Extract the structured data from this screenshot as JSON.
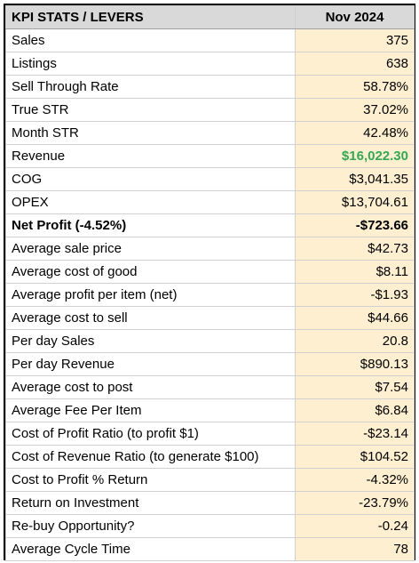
{
  "header": {
    "metric_label": "KPI STATS / LEVERS",
    "month_label": "Nov 2024"
  },
  "colors": {
    "header_bg": "#d9d9d9",
    "value_bg": "#fdefd0",
    "revenue_green": "#34a853"
  },
  "rows": [
    {
      "label": "Sales",
      "value": "375"
    },
    {
      "label": "Listings",
      "value": "638"
    },
    {
      "label": "Sell Through Rate",
      "value": "58.78%"
    },
    {
      "label": "True STR",
      "value": "37.02%"
    },
    {
      "label": "Month STR",
      "value": "42.48%"
    },
    {
      "label": "Revenue",
      "value": "$16,022.30"
    },
    {
      "label": "COG",
      "value": "$3,041.35"
    },
    {
      "label": "OPEX",
      "value": "$13,704.61"
    },
    {
      "label": "Net Profit (-4.52%)",
      "value": "-$723.66"
    },
    {
      "label": "Average sale price",
      "value": "$42.73"
    },
    {
      "label": "Average cost of good",
      "value": "$8.11"
    },
    {
      "label": "Average profit per item (net)",
      "value": "-$1.93"
    },
    {
      "label": "Average cost to sell",
      "value": "$44.66"
    },
    {
      "label": "Per day Sales",
      "value": "20.8"
    },
    {
      "label": "Per day Revenue",
      "value": "$890.13"
    },
    {
      "label": "Average cost to post",
      "value": "$7.54"
    },
    {
      "label": "Average Fee Per Item",
      "value": "$6.84"
    },
    {
      "label": "Cost of Profit Ratio (to profit $1)",
      "value": "-$23.14"
    },
    {
      "label": "Cost of Revenue Ratio (to generate $100)",
      "value": "$104.52"
    },
    {
      "label": "Cost to Profit % Return",
      "value": "-4.32%"
    },
    {
      "label": "Return on Investment",
      "value": "-23.79%"
    },
    {
      "label": "Re-buy Opportunity?",
      "value": "-0.24"
    },
    {
      "label": "Average Cycle Time",
      "value": "78"
    }
  ]
}
